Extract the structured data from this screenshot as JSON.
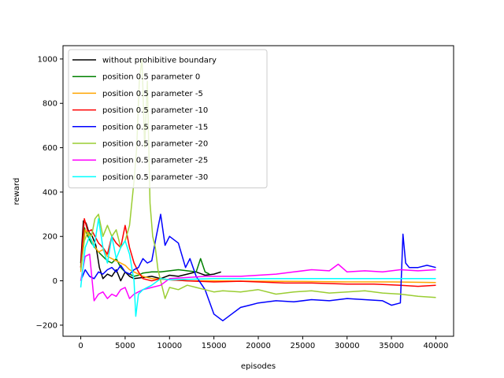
{
  "chart_data": {
    "type": "line",
    "title": "",
    "xlabel": "episodes",
    "ylabel": "reward",
    "xlim": [
      -2000,
      42000
    ],
    "ylim": [
      -250,
      1060
    ],
    "xticks": [
      0,
      5000,
      10000,
      15000,
      20000,
      25000,
      30000,
      35000,
      40000
    ],
    "yticks": [
      -200,
      0,
      200,
      400,
      600,
      800,
      1000
    ],
    "grid": false,
    "legend_position": "upper-left",
    "series": [
      {
        "name": "without prohibitive boundary",
        "color": "#000000",
        "x": [
          0,
          300,
          600,
          900,
          1300,
          1700,
          2100,
          2500,
          3000,
          3500,
          4000,
          4500,
          5000,
          5500,
          6000,
          7000,
          8000,
          9000,
          10000,
          11000,
          12000,
          13000,
          14000,
          15000,
          15800
        ],
        "y": [
          80,
          270,
          260,
          220,
          200,
          160,
          60,
          10,
          30,
          20,
          50,
          0,
          40,
          20,
          10,
          15,
          20,
          10,
          25,
          20,
          30,
          40,
          25,
          30,
          40
        ]
      },
      {
        "name": "position 0.5 parameter 0",
        "color": "#008000",
        "x": [
          0,
          400,
          800,
          1200,
          1600,
          2000,
          2500,
          3000,
          3500,
          4000,
          4500,
          5000,
          5500,
          6000,
          6500,
          7000,
          8000,
          9000,
          10000,
          11000,
          12000,
          13000,
          13500,
          14000,
          14500
        ],
        "y": [
          60,
          240,
          200,
          170,
          150,
          130,
          110,
          90,
          80,
          100,
          60,
          40,
          30,
          20,
          25,
          35,
          40,
          40,
          45,
          50,
          45,
          40,
          100,
          40,
          30
        ]
      },
      {
        "name": "position 0.5 parameter -5",
        "color": "#FFA500",
        "x": [
          0,
          500,
          1000,
          1500,
          2000,
          2500,
          3000,
          3500,
          4000,
          4500,
          5000,
          5500,
          6000,
          6500,
          7000,
          8000,
          10000,
          12000,
          15000,
          20000,
          25000,
          30000,
          35000,
          40000
        ],
        "y": [
          40,
          230,
          200,
          160,
          130,
          140,
          110,
          100,
          90,
          80,
          70,
          50,
          40,
          30,
          20,
          10,
          5,
          0,
          0,
          -2,
          -3,
          -5,
          -5,
          -8
        ]
      },
      {
        "name": "position 0.5 parameter -10",
        "color": "#FF0000",
        "x": [
          0,
          400,
          800,
          1200,
          1600,
          2000,
          2500,
          3000,
          3500,
          4000,
          4500,
          5000,
          5500,
          6000,
          6500,
          7000,
          8000,
          9000,
          10000,
          12000,
          15000,
          18000,
          20000,
          23000,
          26000,
          30000,
          33000,
          36000,
          38000,
          40000
        ],
        "y": [
          60,
          280,
          220,
          230,
          200,
          170,
          150,
          120,
          200,
          170,
          150,
          250,
          150,
          80,
          40,
          10,
          0,
          10,
          5,
          0,
          -5,
          -2,
          -5,
          -10,
          -10,
          -15,
          -15,
          -20,
          -25,
          -20
        ]
      },
      {
        "name": "position 0.5 parameter -15",
        "color": "#0000FF",
        "x": [
          0,
          500,
          1000,
          1500,
          2000,
          2500,
          3000,
          3500,
          4000,
          4500,
          5000,
          5500,
          6000,
          6500,
          7000,
          7500,
          8000,
          8500,
          9000,
          9500,
          10000,
          11000,
          11800,
          12300,
          13000,
          14000,
          15000,
          16000,
          17000,
          18000,
          19000,
          20000,
          22000,
          24000,
          26000,
          28000,
          30000,
          32000,
          34000,
          35000,
          36000,
          36300,
          36600,
          37000,
          38000,
          39000,
          40000
        ],
        "y": [
          0,
          50,
          20,
          10,
          40,
          30,
          50,
          60,
          40,
          70,
          40,
          30,
          50,
          60,
          100,
          80,
          90,
          200,
          300,
          160,
          200,
          170,
          60,
          100,
          20,
          -40,
          -150,
          -180,
          -150,
          -120,
          -110,
          -100,
          -90,
          -95,
          -85,
          -90,
          -80,
          -85,
          -90,
          -110,
          -100,
          210,
          80,
          60,
          60,
          70,
          60
        ]
      },
      {
        "name": "position 0.5 parameter -20",
        "color": "#9ACD32",
        "x": [
          0,
          400,
          800,
          1200,
          1600,
          2000,
          2500,
          3000,
          3500,
          4000,
          4500,
          5000,
          5500,
          6000,
          6300,
          6600,
          6900,
          7200,
          7500,
          7800,
          8100,
          8400,
          8700,
          9000,
          9500,
          10000,
          11000,
          12000,
          13000,
          14000,
          15000,
          16000,
          18000,
          20000,
          22000,
          24000,
          26000,
          28000,
          30000,
          32000,
          34000,
          36000,
          38000,
          40000
        ],
        "y": [
          50,
          180,
          220,
          200,
          280,
          300,
          200,
          250,
          200,
          230,
          150,
          180,
          250,
          450,
          600,
          900,
          1000,
          600,
          900,
          350,
          200,
          150,
          50,
          0,
          -80,
          -30,
          -40,
          -20,
          -30,
          -40,
          -50,
          -45,
          -50,
          -40,
          -60,
          -50,
          -45,
          -55,
          -50,
          -45,
          -55,
          -60,
          -70,
          -75
        ]
      },
      {
        "name": "position 0.5 parameter -25",
        "color": "#FF00FF",
        "x": [
          0,
          500,
          1000,
          1500,
          2000,
          2500,
          3000,
          3500,
          4000,
          4500,
          5000,
          5500,
          6000,
          7000,
          8000,
          9000,
          10000,
          12000,
          14000,
          16000,
          18000,
          20000,
          22000,
          24000,
          26000,
          28000,
          29000,
          30000,
          32000,
          34000,
          36000,
          38000,
          40000
        ],
        "y": [
          0,
          110,
          120,
          -90,
          -60,
          -50,
          -80,
          -60,
          -70,
          -40,
          -30,
          -80,
          -60,
          -40,
          -30,
          -20,
          10,
          15,
          20,
          20,
          20,
          25,
          30,
          40,
          50,
          45,
          75,
          40,
          45,
          40,
          50,
          45,
          50
        ]
      },
      {
        "name": "position 0.5 parameter -30",
        "color": "#00FFFF",
        "x": [
          0,
          500,
          1000,
          1500,
          2000,
          2500,
          3000,
          3500,
          4000,
          4500,
          5000,
          5500,
          6000,
          6200,
          6500,
          7000,
          8000,
          9000,
          10000,
          15000,
          20000,
          25000,
          30000,
          35000,
          40000
        ],
        "y": [
          -30,
          150,
          200,
          150,
          280,
          150,
          80,
          200,
          100,
          150,
          180,
          120,
          0,
          -160,
          -60,
          -40,
          -20,
          10,
          5,
          10,
          10,
          10,
          10,
          10,
          10
        ]
      }
    ]
  }
}
